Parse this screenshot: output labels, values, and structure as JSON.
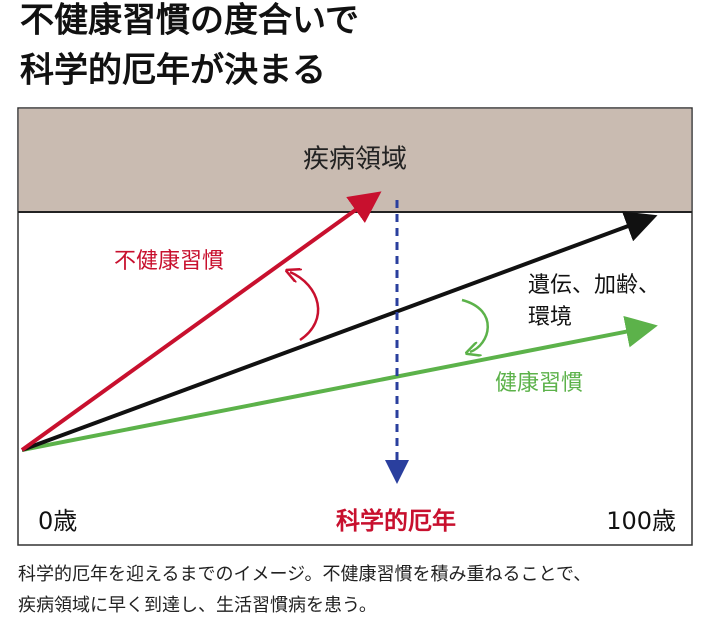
{
  "header": {
    "title_lines": [
      "不健康習慣の度合いで",
      "科学的厄年が決まる"
    ]
  },
  "diagram": {
    "region_label": "疾病領域",
    "arrows": {
      "unhealthy": "不健康習慣",
      "baseline_lines": [
        "遺伝、加齢、",
        "環境"
      ],
      "healthy": "健康習慣"
    },
    "axis": {
      "start": "0歳",
      "marker": "科学的厄年",
      "end": "100歳"
    }
  },
  "caption": {
    "lines": [
      "科学的厄年を迎えるまでのイメージ。不健康習慣を積み重ねることで、",
      "疾病領域に早く到達し、生活習慣病を患う。"
    ]
  }
}
